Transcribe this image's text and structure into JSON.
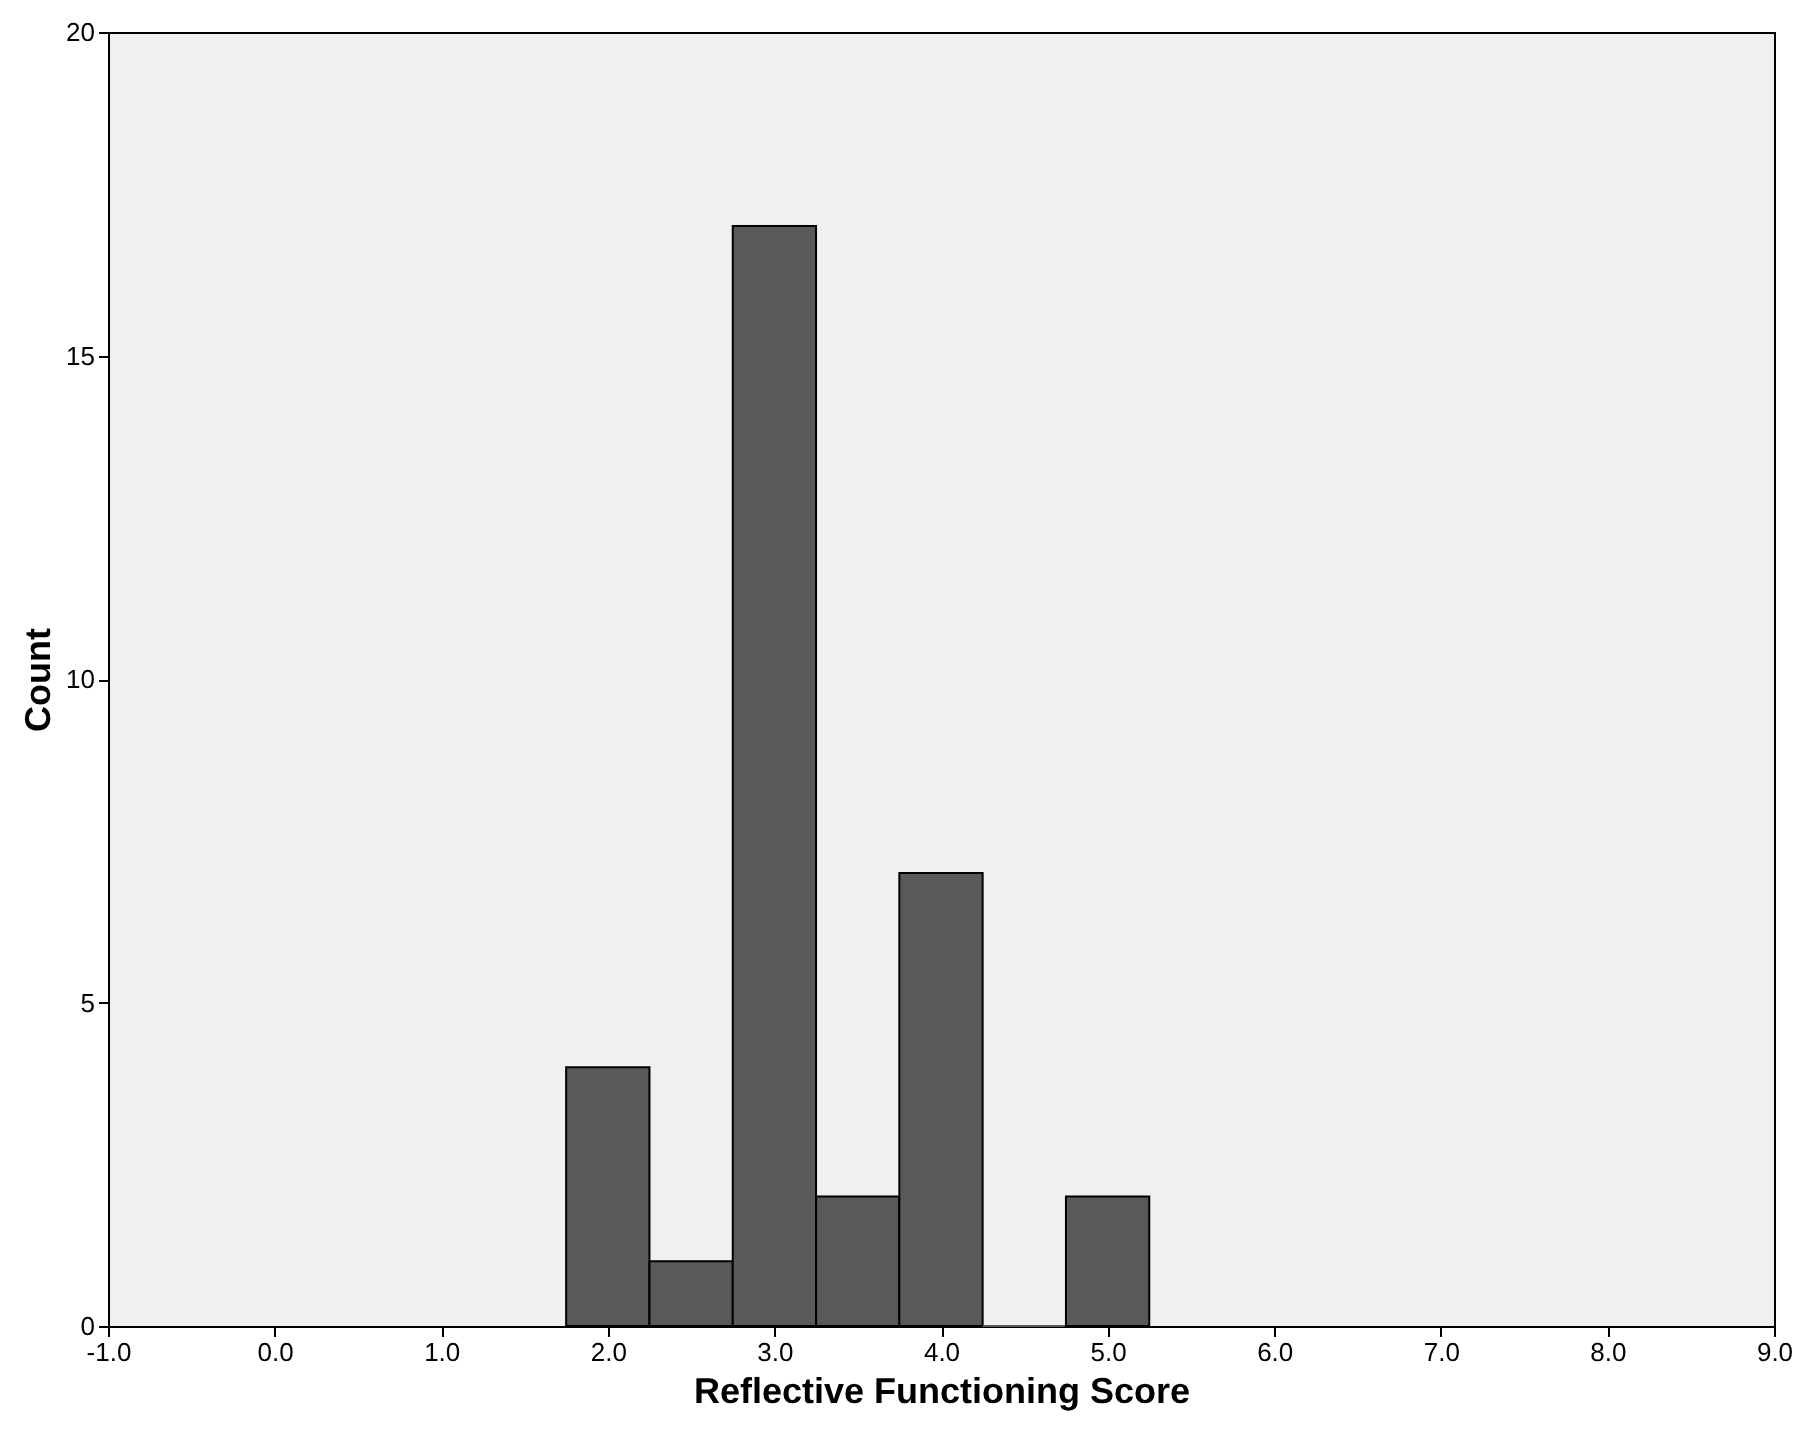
{
  "chart_data": {
    "type": "histogram",
    "xlabel": "Reflective Functioning Score",
    "ylabel": "Count",
    "bins": [
      1.75,
      2.25,
      2.75,
      3.25,
      3.75,
      4.25,
      4.75,
      5.25
    ],
    "values": [
      4,
      1,
      17,
      2,
      7,
      0,
      2
    ],
    "color": "#595959",
    "xlim": [
      -1,
      9
    ],
    "xticks": [
      {
        "value": -1,
        "label": "-1.0"
      },
      {
        "value": 0,
        "label": "0.0"
      },
      {
        "value": 1,
        "label": "1.0"
      },
      {
        "value": 2,
        "label": "2.0"
      },
      {
        "value": 3,
        "label": "3.0"
      },
      {
        "value": 4,
        "label": "4.0"
      },
      {
        "value": 5,
        "label": "5.0"
      },
      {
        "value": 6,
        "label": "6.0"
      },
      {
        "value": 7,
        "label": "7.0"
      },
      {
        "value": 8,
        "label": "8.0"
      },
      {
        "value": 9,
        "label": "9.0"
      }
    ],
    "ylim": [
      0,
      20
    ],
    "yticks": [
      0,
      5,
      10,
      15,
      20
    ],
    "grid": false
  }
}
